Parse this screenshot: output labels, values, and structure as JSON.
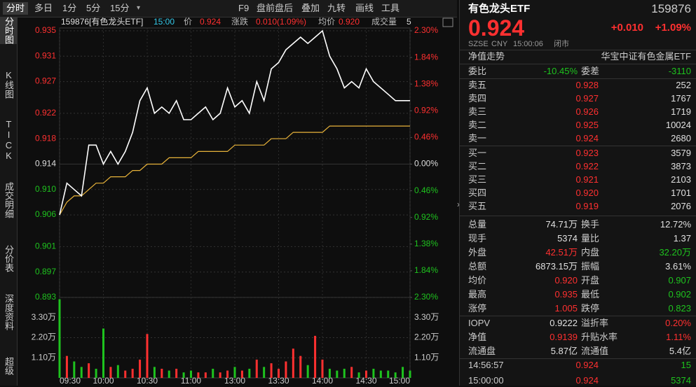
{
  "toolbar": {
    "tabs": [
      "分时",
      "多日",
      "1分",
      "5分",
      "15分"
    ],
    "tools": [
      "F9",
      "盘前盘后",
      "叠加",
      "九转",
      "画线",
      "工具"
    ]
  },
  "sidebar": [
    "分时图",
    "K线图",
    "TICK",
    "成交明细",
    "分价表",
    "深度资料",
    "超级"
  ],
  "chart_data": {
    "type": "line",
    "title": "159876[有色龙头ETF]",
    "time": "15:00",
    "info": [
      {
        "label": "价",
        "value": "0.924",
        "color": "#ff3030"
      },
      {
        "label": "涨跌",
        "value": "0.010(1.09%)",
        "color": "#ff3030"
      },
      {
        "label": "均价",
        "value": "0.920",
        "color": "#ff3030"
      },
      {
        "label": "成交量",
        "value": "5",
        "color": "#dddddd"
      }
    ],
    "x": [
      "09:30",
      "09:35",
      "09:40",
      "09:45",
      "09:50",
      "09:55",
      "10:00",
      "10:05",
      "10:10",
      "10:15",
      "10:20",
      "10:25",
      "10:30",
      "10:35",
      "10:40",
      "10:45",
      "10:50",
      "10:55",
      "11:00",
      "11:05",
      "11:10",
      "11:15",
      "11:20",
      "11:25",
      "11:30",
      "13:05",
      "13:10",
      "13:15",
      "13:20",
      "13:25",
      "13:30",
      "13:35",
      "13:40",
      "13:45",
      "13:50",
      "13:55",
      "14:00",
      "14:05",
      "14:10",
      "14:15",
      "14:20",
      "14:25",
      "14:30",
      "14:35",
      "14:40",
      "14:45",
      "14:50",
      "14:55",
      "15:00"
    ],
    "series": [
      {
        "color": "#ffffff",
        "values": [
          0.906,
          0.911,
          0.91,
          0.909,
          0.917,
          0.917,
          0.914,
          0.916,
          0.914,
          0.916,
          0.919,
          0.924,
          0.926,
          0.922,
          0.923,
          0.922,
          0.924,
          0.921,
          0.921,
          0.922,
          0.923,
          0.921,
          0.922,
          0.926,
          0.923,
          0.924,
          0.922,
          0.927,
          0.924,
          0.929,
          0.93,
          0.932,
          0.933,
          0.934,
          0.933,
          0.934,
          0.935,
          0.931,
          0.929,
          0.926,
          0.927,
          0.926,
          0.929,
          0.927,
          0.926,
          0.925,
          0.924,
          0.924,
          0.924
        ]
      },
      {
        "color": "#e8b33a",
        "values": [
          0.906,
          0.908,
          0.909,
          0.909,
          0.91,
          0.911,
          0.911,
          0.912,
          0.912,
          0.912,
          0.913,
          0.913,
          0.914,
          0.914,
          0.914,
          0.915,
          0.915,
          0.915,
          0.915,
          0.916,
          0.916,
          0.916,
          0.916,
          0.916,
          0.917,
          0.917,
          0.917,
          0.917,
          0.917,
          0.918,
          0.918,
          0.918,
          0.919,
          0.919,
          0.919,
          0.919,
          0.919,
          0.92,
          0.92,
          0.92,
          0.92,
          0.92,
          0.92,
          0.92,
          0.92,
          0.92,
          0.92,
          0.92,
          0.92
        ]
      }
    ],
    "ylim": [
      0.893,
      0.935
    ],
    "yticks": [
      0.935,
      0.931,
      0.927,
      0.922,
      0.918,
      0.914,
      {
        "value": 0.91,
        "label": "0.910"
      },
      0.906,
      0.901,
      0.897,
      0.893
    ],
    "y2lim": [
      -2.3,
      2.3
    ],
    "y2ticks": [
      {
        "value": 2.3,
        "label": "2.30%"
      },
      {
        "value": 1.84,
        "label": "1.84%"
      },
      {
        "value": 1.38,
        "label": "1.38%"
      },
      {
        "value": 0.92,
        "label": "0.92%"
      },
      {
        "value": 0.46,
        "label": "0.46%"
      },
      {
        "value": 0,
        "label": "0.00%"
      },
      {
        "value": -0.46,
        "label": "0.46%"
      },
      {
        "value": -0.92,
        "label": "0.92%"
      },
      {
        "value": -1.38,
        "label": "1.38%"
      },
      {
        "value": -1.84,
        "label": "1.84%"
      },
      {
        "value": -2.3,
        "label": "2.30%"
      }
    ],
    "xticks": [
      "09:30",
      "10:00",
      "10:30",
      "11:00",
      "13:00",
      "13:30",
      "14:00",
      "14:30",
      "15:00"
    ],
    "up_color": "#ff3030",
    "down_color": "#1ec31e",
    "flat_color": "#dddddd",
    "grid": true,
    "volume": {
      "values": [
        4.3,
        1.2,
        0.9,
        0.6,
        0.8,
        0.5,
        2.7,
        0.6,
        0.7,
        0.4,
        0.5,
        1.0,
        2.4,
        0.6,
        0.5,
        0.4,
        0.5,
        0.3,
        0.4,
        0.3,
        0.3,
        0.5,
        0.3,
        0.4,
        0.6,
        0.4,
        0.5,
        1.0,
        0.6,
        0.8,
        0.5,
        0.9,
        1.6,
        1.2,
        0.7,
        2.3,
        1.0,
        0.5,
        0.4,
        0.5,
        0.6,
        0.3,
        0.4,
        0.5,
        0.4,
        0.4,
        0.3,
        0.6,
        0.4
      ],
      "ylim": [
        0,
        4.4
      ],
      "yticks": [
        {
          "value": 3.3,
          "label": "3.30万"
        },
        {
          "value": 2.2,
          "label": "2.20万"
        },
        {
          "value": 1.1,
          "label": "1.10万"
        }
      ]
    }
  },
  "quote": {
    "name": "有色龙头ETF",
    "code": "159876",
    "price": "0.924",
    "change": "+0.010",
    "change_pct": "+1.09%",
    "exchange": "SZSE",
    "currency": "CNY",
    "time": "15:00:06",
    "status": "闭市",
    "nav_tab": "净值走势",
    "fund_name": "华宝中证有色金属ETF",
    "color": "#ff3030"
  },
  "order_summary": {
    "ratio_label": "委比",
    "ratio": "-10.45%",
    "diff_label": "委差",
    "diff": "-3110",
    "color": "#1ec31e"
  },
  "order_book": {
    "price_color": "#ff3030",
    "rows": [
      {
        "label": "卖五",
        "price": "0.928",
        "volume": "252"
      },
      {
        "label": "卖四",
        "price": "0.927",
        "volume": "1767"
      },
      {
        "label": "卖三",
        "price": "0.926",
        "volume": "1719"
      },
      {
        "label": "卖二",
        "price": "0.925",
        "volume": "10024"
      },
      {
        "label": "卖一",
        "price": "0.924",
        "volume": "2680"
      },
      {
        "label": "买一",
        "price": "0.923",
        "volume": "3579"
      },
      {
        "label": "买二",
        "price": "0.922",
        "volume": "3873"
      },
      {
        "label": "买三",
        "price": "0.921",
        "volume": "2103"
      },
      {
        "label": "买四",
        "price": "0.920",
        "volume": "1701"
      },
      {
        "label": "买五",
        "price": "0.919",
        "volume": "2076"
      }
    ]
  },
  "stats": [
    {
      "label": "总量",
      "value": "74.71万",
      "color": "#e0e0e0"
    },
    {
      "label": "换手",
      "value": "12.72%",
      "color": "#e0e0e0"
    },
    {
      "label": "现手",
      "value": "5374",
      "color": "#e0e0e0"
    },
    {
      "label": "量比",
      "value": "1.37",
      "color": "#e0e0e0"
    },
    {
      "label": "外盘",
      "value": "42.51万",
      "color": "#ff3030"
    },
    {
      "label": "内盘",
      "value": "32.20万",
      "color": "#1ec31e"
    },
    {
      "label": "总额",
      "value": "6873.15万",
      "color": "#e0e0e0"
    },
    {
      "label": "振幅",
      "value": "3.61%",
      "color": "#e0e0e0"
    },
    {
      "label": "均价",
      "value": "0.920",
      "color": "#ff3030"
    },
    {
      "label": "开盘",
      "value": "0.907",
      "color": "#1ec31e"
    },
    {
      "label": "最高",
      "value": "0.935",
      "color": "#ff3030"
    },
    {
      "label": "最低",
      "value": "0.902",
      "color": "#1ec31e"
    },
    {
      "label": "涨停",
      "value": "1.005",
      "color": "#ff3030"
    },
    {
      "label": "跌停",
      "value": "0.823",
      "color": "#1ec31e"
    }
  ],
  "nav_stats": [
    {
      "label": "IOPV",
      "value": "0.9222",
      "color": "#e0e0e0"
    },
    {
      "label": "溢折率",
      "value": "0.20%",
      "color": "#ff3030"
    },
    {
      "label": "净值",
      "value": "0.9139",
      "color": "#ff3030"
    },
    {
      "label": "升贴水率",
      "value": "1.11%",
      "color": "#ff3030"
    },
    {
      "label": "流通盘",
      "value": "5.87亿",
      "color": "#e0e0e0"
    },
    {
      "label": "流通值",
      "value": "5.4亿",
      "color": "#e0e0e0"
    }
  ],
  "trades": [
    {
      "time": "14:56:57",
      "price": "0.924",
      "volume": "15",
      "price_color": "#ff3030",
      "volume_color": "#1ec31e"
    },
    {
      "time": "15:00:00",
      "price": "0.924",
      "volume": "5374",
      "price_color": "#ff3030",
      "volume_color": "#1ec31e"
    }
  ]
}
